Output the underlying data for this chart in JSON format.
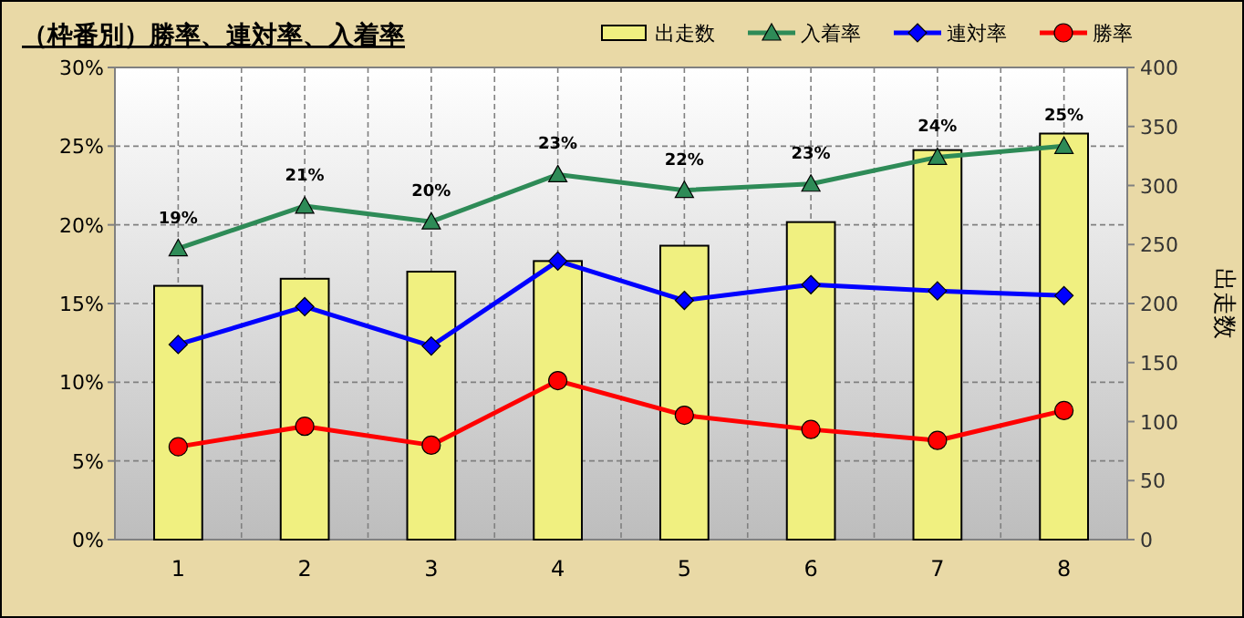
{
  "chart_data": {
    "type": "line",
    "title": "（枠番別）勝率、連対率、入着率",
    "y2label": "出走数",
    "categories": [
      "1",
      "2",
      "3",
      "4",
      "5",
      "6",
      "7",
      "8"
    ],
    "series": [
      {
        "name": "出走数",
        "type": "bar",
        "axis": "y2",
        "color": "#f0f080",
        "values": [
          215,
          221,
          227,
          236,
          249,
          269,
          330,
          344
        ]
      },
      {
        "name": "入着率",
        "marker": "triangle",
        "color": "#2e8b57",
        "values": [
          18.5,
          21.2,
          20.2,
          23.2,
          22.2,
          22.6,
          24.3,
          25.0
        ],
        "value_labels": [
          "19%",
          "21%",
          "20%",
          "23%",
          "22%",
          "23%",
          "24%",
          "25%"
        ]
      },
      {
        "name": "連対率",
        "marker": "diamond",
        "color": "#0000ff",
        "values": [
          12.4,
          14.8,
          12.3,
          17.7,
          15.2,
          16.2,
          15.8,
          15.5
        ]
      },
      {
        "name": "勝率",
        "marker": "circle",
        "color": "#ff0000",
        "values": [
          5.9,
          7.2,
          6.0,
          10.1,
          7.9,
          7.0,
          6.3,
          8.2
        ]
      }
    ],
    "ylim": [
      0,
      30
    ],
    "yticks": [
      {
        "value": 0,
        "label": "0%"
      },
      {
        "value": 5,
        "label": "5%"
      },
      {
        "value": 10,
        "label": "10%"
      },
      {
        "value": 15,
        "label": "15%"
      },
      {
        "value": 20,
        "label": "20%"
      },
      {
        "value": 25,
        "label": "25%"
      },
      {
        "value": 30,
        "label": "30%"
      }
    ],
    "y2lim": [
      0,
      400
    ],
    "y2ticks": [
      0,
      50,
      100,
      150,
      200,
      250,
      300,
      350,
      400
    ],
    "grid": true,
    "legend": "top right"
  }
}
